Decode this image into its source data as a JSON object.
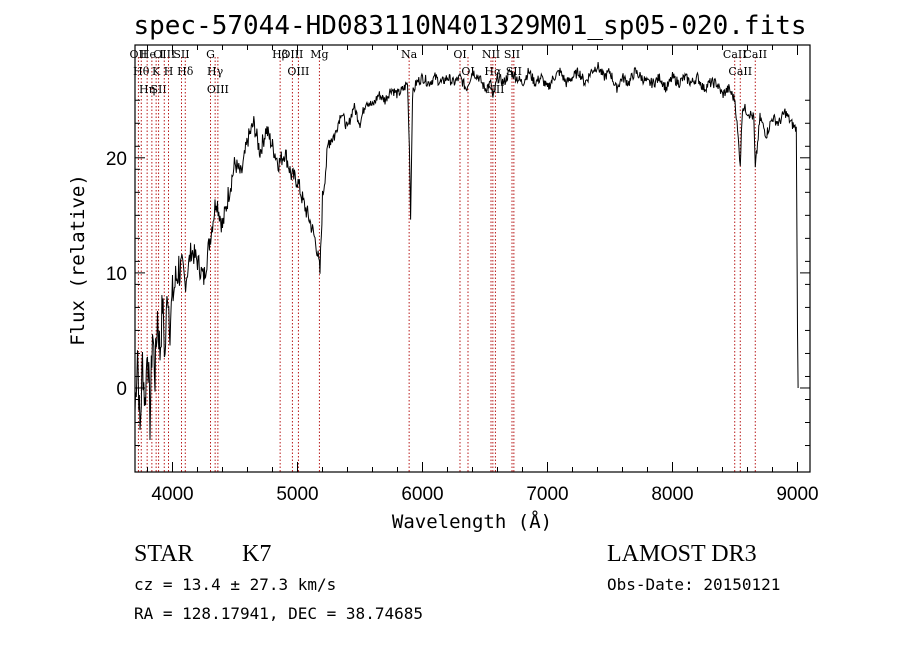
{
  "chart_data": {
    "type": "line",
    "title": "spec-57044-HD083110N401329M01_sp05-020.fits",
    "xlabel": "Wavelength (Å)",
    "ylabel": "Flux (relative)",
    "xlim": [
      3700,
      9100
    ],
    "ylim": [
      -7.3,
      29.8
    ],
    "xticks": [
      4000,
      5000,
      6000,
      7000,
      8000,
      9000
    ],
    "yticks": [
      0,
      10,
      20
    ],
    "grid": false,
    "series": [
      {
        "x": [
          3700,
          3720,
          3740,
          3760,
          3780,
          3800,
          3820,
          3840,
          3860,
          3880,
          3900,
          3920,
          3940,
          3960,
          3980,
          4000,
          4050,
          4100,
          4150,
          4200,
          4250,
          4300,
          4350,
          4400,
          4450,
          4500,
          4550,
          4600,
          4650,
          4700,
          4750,
          4800,
          4850,
          4900,
          4950,
          5000,
          5050,
          5100,
          5150,
          5180,
          5200,
          5250,
          5300,
          5350,
          5400,
          5450,
          5500,
          5550,
          5600,
          5650,
          5700,
          5750,
          5800,
          5850,
          5880,
          5895,
          5905,
          5920,
          5950,
          6000,
          6050,
          6100,
          6150,
          6200,
          6250,
          6300,
          6350,
          6400,
          6450,
          6500,
          6550,
          6563,
          6600,
          6650,
          6700,
          6750,
          6800,
          6850,
          6900,
          6950,
          7000,
          7050,
          7100,
          7150,
          7200,
          7250,
          7300,
          7350,
          7400,
          7450,
          7500,
          7550,
          7600,
          7650,
          7700,
          7750,
          7800,
          7850,
          7900,
          7950,
          8000,
          8050,
          8100,
          8150,
          8200,
          8250,
          8300,
          8350,
          8400,
          8450,
          8500,
          8542,
          8560,
          8600,
          8650,
          8662,
          8700,
          8750,
          8800,
          8850,
          8900,
          8950,
          8990,
          9000,
          9005
        ],
        "y": [
          -2.0,
          3.5,
          -4.0,
          2.5,
          -1.5,
          4.0,
          -3.0,
          5.0,
          1.0,
          6.5,
          3.0,
          7.5,
          2.5,
          9.0,
          5.5,
          8.0,
          10.5,
          9.0,
          12.0,
          11.0,
          9.5,
          13.0,
          16.5,
          14.0,
          17.0,
          19.5,
          18.5,
          21.5,
          23.0,
          20.5,
          22.5,
          21.0,
          19.5,
          20.5,
          18.5,
          18.0,
          16.0,
          14.5,
          12.5,
          10.0,
          16.5,
          21.5,
          22.0,
          24.0,
          22.5,
          24.5,
          23.0,
          25.0,
          24.5,
          25.5,
          25.0,
          26.0,
          25.5,
          26.0,
          26.5,
          21.0,
          15.0,
          25.5,
          26.5,
          27.0,
          26.5,
          27.0,
          26.5,
          27.0,
          26.5,
          27.0,
          26.0,
          27.5,
          27.0,
          26.0,
          26.5,
          25.0,
          27.0,
          26.5,
          27.5,
          27.0,
          26.5,
          27.5,
          26.5,
          27.0,
          26.0,
          27.0,
          27.5,
          26.5,
          27.0,
          27.5,
          26.5,
          27.5,
          28.0,
          27.0,
          27.5,
          26.0,
          27.0,
          26.5,
          27.5,
          27.0,
          26.5,
          26.5,
          27.0,
          26.0,
          27.0,
          26.5,
          27.0,
          26.5,
          27.0,
          26.0,
          26.5,
          26.5,
          25.5,
          26.0,
          25.0,
          19.5,
          24.5,
          24.0,
          23.5,
          19.0,
          23.5,
          22.0,
          23.5,
          23.0,
          24.0,
          23.0,
          22.5,
          5.0,
          0.0
        ]
      }
    ],
    "line_markers": {
      "top": [
        {
          "x": 3727,
          "label": "OII"
        },
        {
          "x": 3750,
          "label": "Hθ"
        },
        {
          "x": 3797,
          "label": "Hη"
        },
        {
          "x": 3835,
          "label": "He I"
        },
        {
          "x": 3869,
          "label": "K"
        },
        {
          "x": 3889,
          "label": "SII"
        },
        {
          "x": 3934,
          "label": "OIII"
        },
        {
          "x": 3968,
          "label": "H"
        },
        {
          "x": 4072,
          "label": "SII"
        },
        {
          "x": 4102,
          "label": "Hδ"
        },
        {
          "x": 4304,
          "label": "G"
        },
        {
          "x": 4341,
          "label": "Hγ"
        },
        {
          "x": 4363,
          "label": "OIII"
        },
        {
          "x": 4861,
          "label": "Hβ"
        },
        {
          "x": 4959,
          "label": "OIII"
        },
        {
          "x": 5007,
          "label": "OIII"
        },
        {
          "x": 5175,
          "label": "Mg"
        },
        {
          "x": 5893,
          "label": "Na"
        },
        {
          "x": 6300,
          "label": "OI"
        },
        {
          "x": 6364,
          "label": "OI"
        },
        {
          "x": 6548,
          "label": "NII"
        },
        {
          "x": 6563,
          "label": "Hα"
        },
        {
          "x": 6583,
          "label": "NII"
        },
        {
          "x": 6716,
          "label": "SII"
        },
        {
          "x": 6731,
          "label": "SII"
        },
        {
          "x": 8498,
          "label": "CaII"
        },
        {
          "x": 8542,
          "label": "CaII"
        },
        {
          "x": 8662,
          "label": "CaII"
        }
      ]
    }
  },
  "info": {
    "class_label": "STAR",
    "subclass": "K7",
    "cz_line": "cz = 13.4 ± 27.3 km/s",
    "radec_line": "RA = 128.17941, DEC =  38.74685",
    "survey": "LAMOST DR3",
    "obs_date_line": "Obs-Date: 20150121"
  }
}
